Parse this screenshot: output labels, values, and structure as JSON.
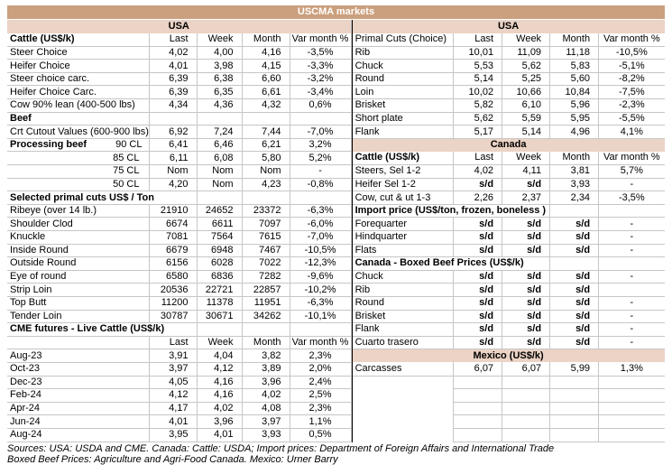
{
  "title": "USCMA markets",
  "colors": {
    "banner_bg": "#CBA07E",
    "banner_text": "#FFFFFF",
    "band_bg": "#EBD3C5",
    "grid": "#C6C6C6",
    "divider": "#000000"
  },
  "left": {
    "rows": [
      {
        "t": "band",
        "label": "USA"
      },
      {
        "t": "header",
        "label": "Cattle (US$/k)",
        "bold": true,
        "cols": [
          "Last",
          "Week",
          "Month",
          "Var month %"
        ]
      },
      {
        "t": "data",
        "label": "Steer Choice",
        "v": [
          "4,02",
          "4,00",
          "4,16",
          "-3,5%"
        ]
      },
      {
        "t": "data",
        "label": "Heifer Choice",
        "v": [
          "4,01",
          "3,98",
          "4,15",
          "-3,3%"
        ]
      },
      {
        "t": "data",
        "label": "Steer choice carc.",
        "v": [
          "6,39",
          "6,38",
          "6,60",
          "-3,2%"
        ]
      },
      {
        "t": "data",
        "label": "Heifer Choice Carc.",
        "v": [
          "6,39",
          "6,35",
          "6,61",
          "-3,4%"
        ]
      },
      {
        "t": "data",
        "label": "Cow 90% lean (400-500 lbs)",
        "v": [
          "4,34",
          "4,36",
          "4,32",
          "0,6%"
        ]
      },
      {
        "t": "section",
        "label": "Beef",
        "span": 1
      },
      {
        "t": "data",
        "label": "Crt Cutout Values (600-900 lbs)",
        "v": [
          "6,92",
          "7,24",
          "7,44",
          "-7,0%"
        ]
      },
      {
        "t": "split",
        "label": "Processing beef",
        "sub": "90 CL",
        "v": [
          "6,41",
          "6,46",
          "6,21",
          "3,2%"
        ]
      },
      {
        "t": "sub",
        "label": "85 CL",
        "v": [
          "6,11",
          "6,08",
          "5,80",
          "5,2%"
        ]
      },
      {
        "t": "sub",
        "label": "75 CL",
        "v": [
          "Nom",
          "Nom",
          "Nom",
          "-"
        ]
      },
      {
        "t": "sub",
        "label": "50 CL",
        "v": [
          "4,20",
          "Nom",
          "4,23",
          "-0,8%"
        ]
      },
      {
        "t": "section",
        "label": "Selected primal cuts US$ / Ton",
        "span": 2
      },
      {
        "t": "data",
        "label": "Ribeye (over 14 lb.)",
        "v": [
          "21910",
          "24652",
          "23372",
          "-6,3%"
        ]
      },
      {
        "t": "data",
        "label": "Shoulder Clod",
        "v": [
          "6674",
          "6611",
          "7097",
          "-6,0%"
        ]
      },
      {
        "t": "data",
        "label": "Knuckle",
        "v": [
          "7081",
          "7564",
          "7615",
          "-7,0%"
        ]
      },
      {
        "t": "data",
        "label": "Inside Round",
        "v": [
          "6679",
          "6948",
          "7467",
          "-10,5%"
        ]
      },
      {
        "t": "data",
        "label": "Outside Round",
        "v": [
          "6156",
          "6028",
          "7022",
          "-12,3%"
        ]
      },
      {
        "t": "data",
        "label": "Eye of round",
        "v": [
          "6580",
          "6836",
          "7282",
          "-9,6%"
        ]
      },
      {
        "t": "data",
        "label": "Strip Loin",
        "v": [
          "20536",
          "22721",
          "22857",
          "-10,2%"
        ]
      },
      {
        "t": "data",
        "label": "Top Butt",
        "v": [
          "11200",
          "11378",
          "11951",
          "-6,3%"
        ]
      },
      {
        "t": "data",
        "label": "Tender Loin",
        "v": [
          "30787",
          "30671",
          "34262",
          "-10,1%"
        ]
      },
      {
        "t": "section",
        "label": "CME futures - Live Cattle (US$/k)",
        "span": 2
      },
      {
        "t": "header",
        "label": "",
        "bold": false,
        "cols": [
          "Last",
          "Week",
          "Month",
          "Var month %"
        ]
      },
      {
        "t": "data",
        "label": "Aug-23",
        "v": [
          "3,91",
          "4,04",
          "3,82",
          "2,3%"
        ]
      },
      {
        "t": "data",
        "label": "Oct-23",
        "v": [
          "3,97",
          "4,12",
          "3,89",
          "2,0%"
        ]
      },
      {
        "t": "data",
        "label": "Dec-23",
        "v": [
          "4,05",
          "4,16",
          "3,96",
          "2,4%"
        ]
      },
      {
        "t": "data",
        "label": "Feb-24",
        "v": [
          "4,12",
          "4,16",
          "4,02",
          "2,5%"
        ]
      },
      {
        "t": "data",
        "label": "Apr-24",
        "v": [
          "4,17",
          "4,02",
          "4,08",
          "2,3%"
        ]
      },
      {
        "t": "data",
        "label": "Jun-24",
        "v": [
          "4,01",
          "3,96",
          "3,97",
          "1,1%"
        ]
      },
      {
        "t": "data",
        "label": "Aug-24",
        "v": [
          "3,95",
          "4,01",
          "3,93",
          "0,5%"
        ]
      }
    ]
  },
  "right": {
    "rows": [
      {
        "t": "band",
        "label": "USA"
      },
      {
        "t": "header",
        "label": "Primal Cuts (Choice)",
        "bold": false,
        "cols": [
          "Last",
          "Week",
          "Month",
          "Var month %"
        ]
      },
      {
        "t": "data",
        "label": "Rib",
        "v": [
          "10,01",
          "11,09",
          "11,18",
          "-10,5%"
        ]
      },
      {
        "t": "data",
        "label": "Chuck",
        "v": [
          "5,53",
          "5,62",
          "5,83",
          "-5,1%"
        ]
      },
      {
        "t": "data",
        "label": "Round",
        "v": [
          "5,14",
          "5,25",
          "5,60",
          "-8,2%"
        ]
      },
      {
        "t": "data",
        "label": "Loin",
        "v": [
          "10,02",
          "10,66",
          "10,84",
          "-7,5%"
        ]
      },
      {
        "t": "data",
        "label": "Brisket",
        "v": [
          "5,82",
          "6,10",
          "5,96",
          "-2,3%"
        ]
      },
      {
        "t": "data",
        "label": "Short plate",
        "v": [
          "5,62",
          "5,59",
          "5,95",
          "-5,5%"
        ]
      },
      {
        "t": "data",
        "label": "Flank",
        "v": [
          "5,17",
          "5,14",
          "4,96",
          "4,1%"
        ]
      },
      {
        "t": "band",
        "label": "Canada"
      },
      {
        "t": "header",
        "label": "Cattle (US$/k)",
        "bold": true,
        "cols": [
          "Last",
          "Week",
          "Month",
          "Var month %"
        ]
      },
      {
        "t": "data",
        "label": "Steers, Sel 1-2",
        "v": [
          "4,02",
          "4,11",
          "3,81",
          "5,7%"
        ]
      },
      {
        "t": "data",
        "label": "Heifer Sel 1-2",
        "v": [
          "s/d",
          "s/d",
          "3,93",
          "-"
        ]
      },
      {
        "t": "data",
        "label": "Cow, cut & ut 1-3",
        "v": [
          "2,26",
          "2,37",
          "2,34",
          "-3,5%"
        ]
      },
      {
        "t": "section",
        "label": "Import price (US$/ton, frozen, boneless )",
        "span": 3
      },
      {
        "t": "data",
        "label": "Forequarter",
        "v": [
          "s/d",
          "s/d",
          "s/d",
          "-"
        ]
      },
      {
        "t": "data",
        "label": "Hindquarter",
        "v": [
          "s/d",
          "s/d",
          "s/d",
          "-"
        ]
      },
      {
        "t": "data",
        "label": "Flats",
        "v": [
          "s/d",
          "s/d",
          "s/d",
          "-"
        ]
      },
      {
        "t": "section",
        "label": "Canada - Boxed Beef Prices (US$/k)",
        "span": 3
      },
      {
        "t": "data",
        "label": "Chuck",
        "v": [
          "s/d",
          "s/d",
          "s/d",
          "-"
        ]
      },
      {
        "t": "data",
        "label": "Rib",
        "v": [
          "s/d",
          "s/d",
          "s/d",
          ""
        ]
      },
      {
        "t": "data",
        "label": "Round",
        "v": [
          "s/d",
          "s/d",
          "s/d",
          "-"
        ]
      },
      {
        "t": "data",
        "label": "Brisket",
        "v": [
          "s/d",
          "s/d",
          "s/d",
          "-"
        ]
      },
      {
        "t": "data",
        "label": "Flank",
        "v": [
          "s/d",
          "s/d",
          "s/d",
          "-"
        ]
      },
      {
        "t": "data",
        "label": "Cuarto trasero",
        "v": [
          "s/d",
          "s/d",
          "s/d",
          "-"
        ]
      },
      {
        "t": "band",
        "label": "Mexico (US$/k)"
      },
      {
        "t": "data",
        "label": "Carcasses",
        "v": [
          "6,07",
          "6,07",
          "5,99",
          "1,3%"
        ]
      },
      {
        "t": "empty"
      },
      {
        "t": "empty"
      },
      {
        "t": "empty"
      },
      {
        "t": "empty"
      },
      {
        "t": "empty"
      }
    ]
  },
  "sources": {
    "line1": "Sources: USA: USDA and CME. Canada: Cattle: USDA; Import prices: Department of Foreign Affairs and International Trade",
    "line2": "Boxed Beef Prices: Agriculture and Agri-Food Canada. Mexico: Urner Barry"
  }
}
